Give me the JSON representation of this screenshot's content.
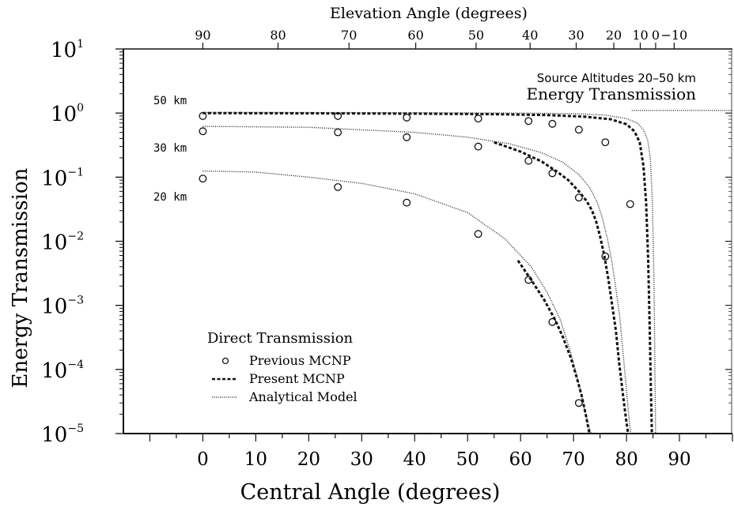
{
  "chart_data": {
    "type": "scatter",
    "xlabel": "Central Angle (degrees)",
    "ylabel": "Energy Transmission",
    "top_xlabel": "Elevation Angle (degrees)",
    "xlim": [
      -15,
      100
    ],
    "ylim": [
      1e-05,
      10
    ],
    "log_y": true,
    "grid": false,
    "x_ticks": [
      0,
      10,
      20,
      30,
      40,
      50,
      60,
      70,
      80,
      90
    ],
    "x_tick_labels": [
      "0",
      "10",
      "20",
      "30",
      "40",
      "50",
      "60",
      "70",
      "80",
      "90"
    ],
    "top_ticks": [
      {
        "x": 0,
        "label": "90"
      },
      {
        "x": 14.2,
        "label": "80"
      },
      {
        "x": 27.6,
        "label": "70"
      },
      {
        "x": 40.2,
        "label": "60"
      },
      {
        "x": 51.6,
        "label": "50"
      },
      {
        "x": 61.8,
        "label": "40"
      },
      {
        "x": 70.5,
        "label": "30"
      },
      {
        "x": 77.6,
        "label": "20"
      },
      {
        "x": 82.6,
        "label": "10"
      },
      {
        "x": 85.5,
        "label": "0"
      },
      {
        "x": 89.0,
        "label": "−10"
      }
    ],
    "y_ticks": [
      {
        "value": 10,
        "base": "10",
        "exp": "1"
      },
      {
        "value": 1,
        "base": "10",
        "exp": "0"
      },
      {
        "value": 0.1,
        "base": "10",
        "exp": "−1"
      },
      {
        "value": 0.01,
        "base": "10",
        "exp": "−2"
      },
      {
        "value": 0.001,
        "base": "10",
        "exp": "−3"
      },
      {
        "value": 0.0001,
        "base": "10",
        "exp": "−4"
      },
      {
        "value": 1e-05,
        "base": "10",
        "exp": "−5"
      }
    ],
    "annotations": {
      "title_line1": "Source Altitudes 20–50 km",
      "title_line2": "Energy Transmission",
      "label_50km": "50 km",
      "label_30km": "30 km",
      "label_20km": "20 km"
    },
    "legend": {
      "title": "Direct Transmission",
      "position": "lower-left",
      "entries": [
        {
          "label": "Previous MCNP",
          "style": "circle"
        },
        {
          "label": "Present MCNP",
          "style": "dashed"
        },
        {
          "label": "Analytical Model",
          "style": "dotted"
        }
      ]
    },
    "series": [
      {
        "kind": "points",
        "style": "circle",
        "x": [
          0,
          25.5,
          38.5,
          52,
          61.5,
          66,
          71,
          76,
          80.7,
          0,
          25.5,
          38.5,
          52,
          61.5,
          66,
          71,
          76,
          0,
          25.5,
          38.5,
          52,
          61.5,
          66,
          71
        ],
        "y": [
          0.9,
          0.9,
          0.85,
          0.82,
          0.75,
          0.68,
          0.55,
          0.35,
          0.038,
          0.52,
          0.5,
          0.42,
          0.3,
          0.18,
          0.115,
          0.048,
          0.0058,
          0.095,
          0.07,
          0.04,
          0.013,
          0.0025,
          0.00055,
          3e-05
        ]
      },
      {
        "kind": "line",
        "style": "dashed",
        "x": [
          0,
          20,
          40,
          55,
          65,
          72,
          77,
          80,
          81.5,
          82.5,
          83.2,
          83.7,
          84.1,
          84.4,
          84.6,
          84.8
        ],
        "y": [
          1.0,
          0.99,
          0.98,
          0.96,
          0.93,
          0.88,
          0.8,
          0.67,
          0.52,
          0.35,
          0.15,
          0.04,
          0.005,
          0.0004,
          5e-05,
          1e-05
        ]
      },
      {
        "kind": "line",
        "style": "dashed",
        "x": [
          55,
          60,
          64,
          67,
          69,
          71,
          72.5,
          73.5,
          74.3,
          75,
          75.8,
          76.6,
          77.3,
          78,
          78.6,
          79.2,
          79.8,
          80.3
        ],
        "y": [
          0.35,
          0.25,
          0.175,
          0.12,
          0.09,
          0.06,
          0.042,
          0.03,
          0.02,
          0.012,
          0.006,
          0.0025,
          0.001,
          0.0004,
          0.00013,
          5e-05,
          2e-05,
          1e-05
        ]
      },
      {
        "kind": "line",
        "style": "dashed",
        "x": [
          59.5,
          62,
          64.5,
          66.5,
          68,
          69.5,
          70.5,
          71.5,
          72.3,
          73
        ],
        "y": [
          0.005,
          0.0025,
          0.0012,
          0.0006,
          0.00032,
          0.00015,
          8e-05,
          4e-05,
          2e-05,
          1e-05
        ]
      },
      {
        "kind": "line",
        "style": "dotted",
        "x": [
          0,
          20,
          40,
          60,
          70,
          76,
          80,
          82,
          83.2,
          84,
          84.5,
          84.9,
          85.2,
          85.5
        ],
        "y": [
          1.02,
          1.02,
          1.01,
          1.0,
          0.98,
          0.93,
          0.82,
          0.7,
          0.55,
          0.38,
          0.2,
          0.04,
          0.002,
          1e-05
        ]
      },
      {
        "kind": "line",
        "style": "dotted",
        "x": [
          81,
          88,
          95,
          100
        ],
        "y": [
          1.1,
          1.1,
          1.1,
          1.1
        ]
      },
      {
        "kind": "line",
        "style": "dotted",
        "x": [
          0,
          20,
          40,
          50,
          58,
          64,
          68,
          71,
          73,
          74.5,
          75.5,
          76.5,
          77.3,
          78,
          78.7,
          79.3,
          79.9,
          80.4,
          80.8
        ],
        "y": [
          0.62,
          0.6,
          0.5,
          0.42,
          0.33,
          0.24,
          0.17,
          0.11,
          0.07,
          0.04,
          0.022,
          0.01,
          0.0045,
          0.0018,
          0.0007,
          0.0002,
          6e-05,
          2e-05,
          1e-05
        ]
      },
      {
        "kind": "line",
        "style": "dotted",
        "x": [
          0,
          10,
          20,
          30,
          40,
          50,
          57,
          62,
          65,
          67.5,
          69.5,
          71,
          72.3,
          73.3
        ],
        "y": [
          0.125,
          0.12,
          0.1,
          0.08,
          0.055,
          0.028,
          0.011,
          0.004,
          0.0016,
          0.0006,
          0.00018,
          6e-05,
          2e-05,
          1e-05
        ]
      }
    ]
  }
}
